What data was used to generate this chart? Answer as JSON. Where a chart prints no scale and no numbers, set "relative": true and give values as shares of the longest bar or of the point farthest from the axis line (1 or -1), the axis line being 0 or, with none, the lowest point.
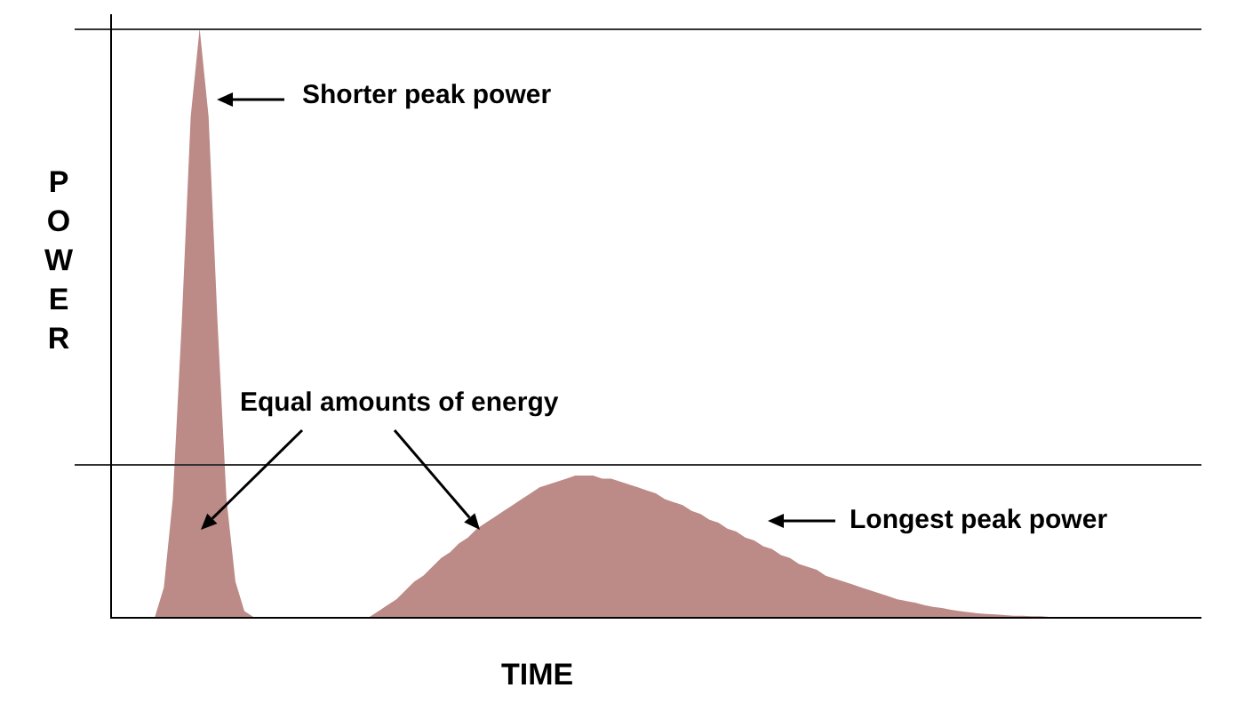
{
  "chart_data": {
    "type": "area",
    "relative": true,
    "xlabel": "TIME",
    "ylabel": "POWER",
    "categories": [
      null,
      null,
      null,
      null,
      null,
      null,
      null,
      null,
      null,
      null,
      null,
      null,
      null,
      null,
      null,
      null,
      null,
      null,
      null,
      null,
      null,
      null,
      null,
      null,
      null,
      null,
      null,
      null,
      null,
      null,
      null,
      null,
      null,
      null,
      null,
      null,
      null,
      null,
      null,
      null,
      null,
      null,
      null,
      null,
      null,
      null,
      null,
      null,
      null,
      null,
      null,
      null,
      null,
      null,
      null,
      null,
      null,
      null,
      null,
      null,
      null,
      null,
      null,
      null,
      null,
      null,
      null,
      null,
      null,
      null,
      null,
      null,
      null,
      null,
      null,
      null,
      null,
      null,
      null,
      null,
      null,
      null,
      null,
      null,
      null,
      null,
      null,
      null,
      null,
      null,
      null,
      null,
      null,
      null,
      null,
      null,
      null,
      null,
      null,
      null,
      null,
      null,
      null,
      null,
      null,
      null,
      null,
      null,
      null,
      null,
      null,
      null,
      null,
      null,
      null,
      null,
      null,
      null,
      null,
      null,
      null,
      null,
      null
    ],
    "series": [
      {
        "color": "#bc8a87",
        "values": [
          0,
          0,
          0,
          0,
          0,
          0,
          0.05,
          0.2,
          0.5,
          0.85,
          1,
          0.85,
          0.5,
          0.2,
          0.06,
          0.01,
          0,
          0,
          0,
          0,
          0,
          0,
          0,
          0,
          0,
          0,
          0,
          0,
          0,
          0,
          0,
          0,
          0,
          0,
          0,
          0,
          0,
          0,
          0,
          0,
          0,
          0,
          0,
          0,
          0,
          0,
          0,
          0,
          0,
          0,
          0,
          0,
          0,
          0,
          0,
          0,
          0,
          0,
          0,
          0,
          0,
          0,
          0,
          0,
          0,
          0,
          0,
          0,
          0,
          0,
          0,
          0,
          0,
          0,
          0,
          0,
          0,
          0,
          0,
          0,
          0,
          0,
          0,
          0,
          0,
          0,
          0,
          0,
          0,
          0,
          0,
          0,
          0,
          0,
          0,
          0,
          0,
          0,
          0,
          0,
          0,
          0,
          0,
          0,
          0,
          0,
          0,
          0,
          0,
          0,
          0,
          0,
          0,
          0,
          0,
          0,
          0,
          0,
          0,
          0,
          0,
          0,
          0
        ]
      },
      {
        "color": "#bc8a87",
        "values": [
          0,
          0,
          0,
          0,
          0,
          0,
          0,
          0,
          0,
          0,
          0,
          0,
          0,
          0,
          0,
          0,
          0,
          0,
          0,
          0,
          0,
          0,
          0,
          0,
          0,
          0,
          0,
          0,
          0,
          0,
          0.01,
          0.02,
          0.03,
          0.045,
          0.06,
          0.07,
          0.085,
          0.1,
          0.11,
          0.125,
          0.135,
          0.15,
          0.16,
          0.17,
          0.18,
          0.19,
          0.2,
          0.21,
          0.22,
          0.225,
          0.23,
          0.235,
          0.24,
          0.24,
          0.24,
          0.235,
          0.235,
          0.23,
          0.225,
          0.22,
          0.215,
          0.21,
          0.2,
          0.195,
          0.19,
          0.18,
          0.175,
          0.165,
          0.16,
          0.15,
          0.145,
          0.135,
          0.13,
          0.12,
          0.115,
          0.105,
          0.1,
          0.09,
          0.085,
          0.08,
          0.07,
          0.065,
          0.06,
          0.055,
          0.05,
          0.045,
          0.04,
          0.035,
          0.03,
          0.027,
          0.024,
          0.02,
          0.017,
          0.015,
          0.012,
          0.01,
          0.008,
          0.006,
          0.005,
          0.004,
          0.003,
          0.002,
          0.002,
          0.001,
          0.001,
          0,
          0,
          0,
          0,
          0,
          0,
          0,
          0,
          0,
          0,
          0,
          0,
          0,
          0,
          0,
          0,
          0,
          0
        ]
      }
    ],
    "ref_lines": [
      {
        "axis": "y",
        "value": 1
      },
      {
        "axis": "y",
        "value": 0.26
      }
    ],
    "annotations": [
      "Shorter peak power",
      "Equal amounts of energy",
      "Longest peak power"
    ],
    "legend": false
  }
}
